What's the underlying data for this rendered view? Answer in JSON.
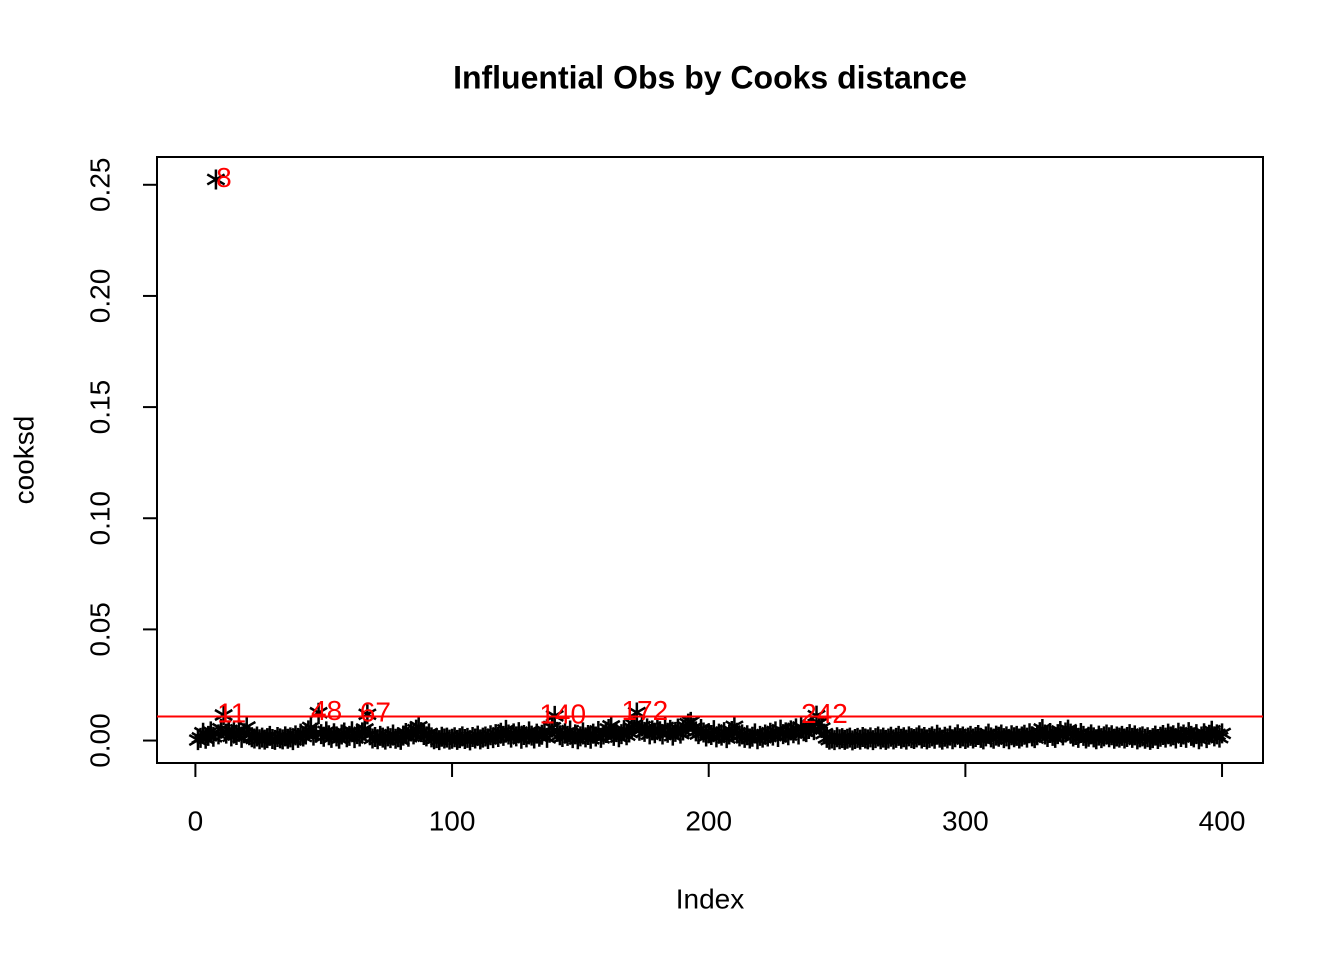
{
  "chart_data": {
    "type": "scatter",
    "title": "Influential Obs by Cooks distance",
    "x_label": "Index",
    "y_label": "cooksd",
    "color": "#000000",
    "values": [
      0.0002,
      0.0012,
      0.0035,
      0.0008,
      0.0021,
      0.0041,
      0.0017,
      0.2524,
      0.0028,
      0.0053,
      0.0115,
      0.0031,
      0.0046,
      0.0019,
      0.0037,
      0.0025,
      0.0049,
      0.0012,
      0.0033,
      0.0061,
      0.0024,
      0.0015,
      0.0009,
      0.0018,
      0.0006,
      0.0013,
      0.0004,
      0.0011,
      0.0021,
      0.0007,
      0.0003,
      0.0016,
      0.001,
      0.0005,
      0.0019,
      0.0008,
      0.0014,
      0.0002,
      0.0023,
      0.0012,
      0.0031,
      0.0018,
      0.0027,
      0.0046,
      0.0059,
      0.0022,
      0.0035,
      0.0125,
      0.0029,
      0.0017,
      0.0041,
      0.0024,
      0.0012,
      0.0033,
      0.0019,
      0.0008,
      0.0027,
      0.0036,
      0.0015,
      0.0021,
      0.0042,
      0.0011,
      0.0029,
      0.0018,
      0.0037,
      0.0052,
      0.0118,
      0.0024,
      0.0009,
      0.0016,
      0.0006,
      0.0021,
      0.0013,
      0.0004,
      0.0019,
      0.0011,
      0.0027,
      0.0008,
      0.0015,
      0.0003,
      0.0022,
      0.0034,
      0.0017,
      0.0041,
      0.0028,
      0.0049,
      0.0062,
      0.0038,
      0.0025,
      0.0019,
      0.0032,
      0.0014,
      0.0006,
      0.0011,
      0.0002,
      0.0017,
      0.0009,
      0.0013,
      0.0004,
      0.0008,
      0.0015,
      0.0003,
      0.0011,
      0.0019,
      0.0007,
      0.0012,
      0.0001,
      0.0016,
      0.0009,
      0.0022,
      0.0005,
      0.0013,
      0.0018,
      0.0007,
      0.0024,
      0.0011,
      0.0029,
      0.0016,
      0.0035,
      0.0021,
      0.0048,
      0.0027,
      0.0013,
      0.0032,
      0.0019,
      0.0038,
      0.0008,
      0.0025,
      0.0014,
      0.0041,
      0.0022,
      0.0009,
      0.0031,
      0.0017,
      0.0026,
      0.0044,
      0.0012,
      0.0035,
      0.0058,
      0.0111,
      0.0039,
      0.0024,
      0.0016,
      0.0033,
      0.0021,
      0.0045,
      0.0011,
      0.0028,
      0.0006,
      0.0019,
      0.0037,
      0.0014,
      0.0025,
      0.0008,
      0.0031,
      0.0018,
      0.0043,
      0.0012,
      0.0027,
      0.0034,
      0.0052,
      0.0066,
      0.0021,
      0.0038,
      0.0015,
      0.0029,
      0.0047,
      0.0024,
      0.0036,
      0.0058,
      0.0071,
      0.0126,
      0.0044,
      0.0063,
      0.0039,
      0.0055,
      0.0028,
      0.0046,
      0.0033,
      0.0051,
      0.0042,
      0.0027,
      0.0059,
      0.0035,
      0.0048,
      0.0022,
      0.0039,
      0.0054,
      0.0031,
      0.0045,
      0.0063,
      0.0076,
      0.0084,
      0.0057,
      0.0041,
      0.0029,
      0.0052,
      0.0036,
      0.0018,
      0.0033,
      0.0025,
      0.0047,
      0.0014,
      0.0031,
      0.0022,
      0.0038,
      0.0011,
      0.0027,
      0.0043,
      0.0064,
      0.0035,
      0.0019,
      0.0028,
      0.0012,
      0.0024,
      0.0009,
      0.0017,
      0.0032,
      0.0006,
      0.0021,
      0.0013,
      0.0027,
      0.0018,
      0.0035,
      0.0022,
      0.0041,
      0.0016,
      0.0049,
      0.0029,
      0.0037,
      0.0024,
      0.0046,
      0.0033,
      0.0055,
      0.0027,
      0.0061,
      0.0042,
      0.0038,
      0.0052,
      0.0069,
      0.0047,
      0.0112,
      0.0078,
      0.0056,
      0.0031,
      0.0012,
      0.0004,
      0.0009,
      0.0002,
      0.0015,
      0.0006,
      0.0011,
      0.0003,
      0.0008,
      0.0013,
      0.0001,
      0.0007,
      0.0012,
      0.0004,
      0.0016,
      0.0009,
      0.0005,
      0.0014,
      0.0002,
      0.0011,
      0.0018,
      0.0006,
      0.0013,
      0.0003,
      0.0009,
      0.0017,
      0.0005,
      0.0012,
      0.0021,
      0.0008,
      0.0015,
      0.0004,
      0.0019,
      0.0011,
      0.0007,
      0.0014,
      0.0023,
      0.0009,
      0.0016,
      0.0005,
      0.0012,
      0.0019,
      0.0008,
      0.0026,
      0.0013,
      0.0004,
      0.0017,
      0.001,
      0.0022,
      0.0006,
      0.0015,
      0.0028,
      0.0011,
      0.0018,
      0.0007,
      0.0013,
      0.0021,
      0.0009,
      0.0016,
      0.0025,
      0.0012,
      0.0005,
      0.0019,
      0.0031,
      0.0014,
      0.0008,
      0.0022,
      0.0017,
      0.0027,
      0.0011,
      0.0019,
      0.0006,
      0.0024,
      0.0015,
      0.0021,
      0.0009,
      0.0018,
      0.0026,
      0.0013,
      0.0033,
      0.0019,
      0.0011,
      0.0024,
      0.0038,
      0.0052,
      0.0027,
      0.0016,
      0.0034,
      0.0021,
      0.0012,
      0.0029,
      0.0043,
      0.0023,
      0.0036,
      0.0049,
      0.0031,
      0.0018,
      0.0025,
      0.0012,
      0.0034,
      0.0021,
      0.0009,
      0.0017,
      0.0028,
      0.0014,
      0.0006,
      0.0022,
      0.0011,
      0.0019,
      0.0027,
      0.0015,
      0.0024,
      0.0008,
      0.0018,
      0.0013,
      0.0021,
      0.0009,
      0.0016,
      0.0029,
      0.0012,
      0.0023,
      0.0005,
      0.0014,
      0.0019,
      0.0008,
      0.0015,
      0.0003,
      0.0011,
      0.0022,
      0.0007,
      0.0017,
      0.0025,
      0.0013,
      0.0031,
      0.0018,
      0.0024,
      0.0009,
      0.0035,
      0.0016,
      0.0027,
      0.0012,
      0.0038,
      0.0021,
      0.0014,
      0.0029,
      0.0006,
      0.0018,
      0.0033,
      0.0011,
      0.0026,
      0.0044,
      0.0019,
      0.0028,
      0.0013,
      0.0032
    ],
    "xlim": [
      -14.96,
      415.96
    ],
    "xticks": [
      0,
      100,
      200,
      300,
      400
    ],
    "ylim": [
      -0.0101,
      0.2625
    ],
    "yticks": [
      {
        "value": 0,
        "label": "0.00"
      },
      {
        "value": 0.05,
        "label": "0.05"
      },
      {
        "value": 0.1,
        "label": "0.10"
      },
      {
        "value": 0.15,
        "label": "0.15"
      },
      {
        "value": 0.2,
        "label": "0.20"
      },
      {
        "value": 0.25,
        "label": "0.25"
      }
    ],
    "hline": {
      "value": 0.0108,
      "color": "#ff0000"
    },
    "point_labels": {
      "indices": [
        8,
        11,
        48,
        67,
        140,
        172,
        242
      ],
      "color": "#ff0000"
    }
  }
}
